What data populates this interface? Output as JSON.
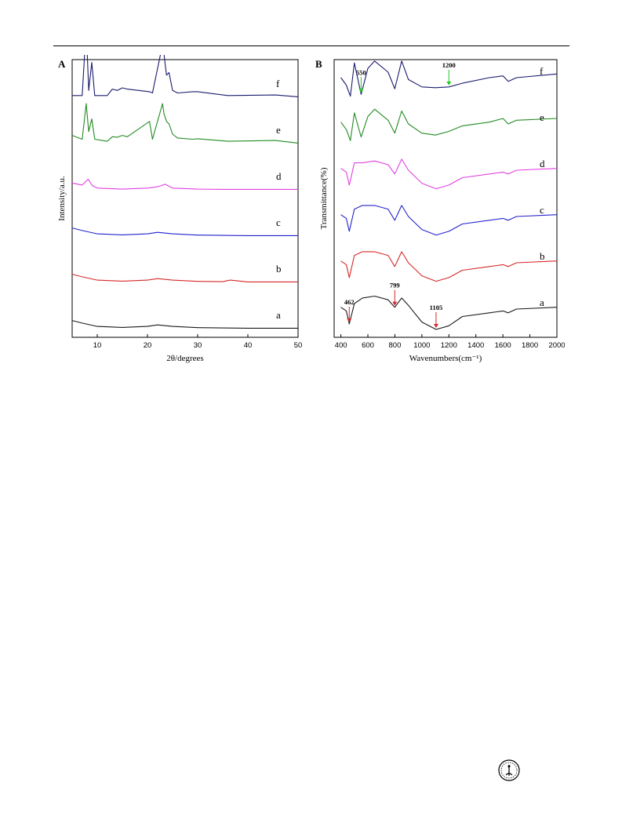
{
  "figure": {
    "panels": [
      {
        "id": "A",
        "type": "line",
        "xlabel": "2θ/degrees",
        "ylabel": "Intensity/a.u.",
        "xlim": [
          5,
          50
        ],
        "xticks": [
          10,
          20,
          30,
          40,
          50
        ],
        "series_labels": [
          "a",
          "b",
          "c",
          "d",
          "e",
          "f"
        ],
        "colors": [
          "#1a1a1a",
          "#d62828",
          "#2222cc",
          "#e040e0",
          "#228b22",
          "#1a1a6e"
        ]
      },
      {
        "id": "B",
        "type": "line",
        "xlabel": "Wavenumbers(cm⁻¹)",
        "ylabel": "Transmittance(%)",
        "xlim": [
          350,
          2000
        ],
        "xticks": [
          400,
          600,
          800,
          1000,
          1200,
          1400,
          1600,
          1800,
          2000
        ],
        "series_labels": [
          "a",
          "b",
          "c",
          "d",
          "e",
          "f"
        ],
        "colors": [
          "#1a1a1a",
          "#d62828",
          "#2222cc",
          "#e040e0",
          "#228b22",
          "#1a1a6e"
        ],
        "annotations": [
          {
            "text": "462",
            "x": 462,
            "series": "a",
            "arrow_color": "#d62828"
          },
          {
            "text": "799",
            "x": 799,
            "series": "a",
            "arrow_color": "#d62828"
          },
          {
            "text": "1105",
            "x": 1105,
            "series": "a",
            "arrow_color": "#d62828"
          },
          {
            "text": "550",
            "x": 550,
            "series": "f",
            "arrow_color": "#22cc22"
          },
          {
            "text": "1200",
            "x": 1200,
            "series": "f",
            "arrow_color": "#22cc22"
          }
        ]
      }
    ]
  },
  "chart_data": [
    {
      "type": "line",
      "title": "",
      "panel_label": "A",
      "xlabel": "2θ/degrees",
      "ylabel": "Intensity/a.u.",
      "xlim": [
        5,
        50
      ],
      "grid": false,
      "series": [
        {
          "name": "a",
          "x": [
            5,
            7,
            10,
            15,
            20,
            22,
            25,
            30,
            35,
            40,
            45,
            50
          ],
          "values": [
            0.35,
            0.25,
            0.12,
            0.08,
            0.12,
            0.18,
            0.12,
            0.07,
            0.06,
            0.05,
            0.05,
            0.05
          ]
        },
        {
          "name": "b",
          "x": [
            5,
            7,
            10,
            15,
            20,
            22,
            25,
            30,
            35,
            36.5,
            40,
            45,
            50
          ],
          "values": [
            0.35,
            0.25,
            0.12,
            0.08,
            0.12,
            0.18,
            0.12,
            0.07,
            0.06,
            0.12,
            0.05,
            0.05,
            0.05
          ]
        },
        {
          "name": "c",
          "x": [
            5,
            7,
            10,
            15,
            20,
            22,
            25,
            30,
            35,
            40,
            45,
            50
          ],
          "values": [
            0.35,
            0.25,
            0.12,
            0.08,
            0.12,
            0.18,
            0.12,
            0.07,
            0.06,
            0.05,
            0.05,
            0.05
          ]
        },
        {
          "name": "d",
          "x": [
            5,
            7,
            8.2,
            9,
            10,
            15,
            20,
            22,
            23.5,
            25,
            30,
            35,
            40,
            45,
            50
          ],
          "values": [
            0.3,
            0.22,
            0.45,
            0.2,
            0.1,
            0.06,
            0.1,
            0.15,
            0.25,
            0.1,
            0.06,
            0.05,
            0.05,
            0.05,
            0.05
          ]
        },
        {
          "name": "e",
          "x": [
            5,
            7,
            7.8,
            8.3,
            8.9,
            9.5,
            12,
            13,
            14,
            15,
            16,
            20.4,
            21,
            23,
            23.3,
            23.8,
            24.3,
            25,
            26,
            29,
            30,
            36,
            45.5,
            50
          ],
          "values": [
            0.35,
            0.2,
            1.6,
            0.5,
            1.0,
            0.2,
            0.12,
            0.3,
            0.28,
            0.35,
            0.3,
            0.9,
            0.2,
            1.6,
            1.2,
            0.9,
            0.8,
            0.4,
            0.25,
            0.2,
            0.22,
            0.12,
            0.15,
            0.05
          ]
        },
        {
          "name": "f",
          "x": [
            5,
            7,
            7.8,
            8.3,
            8.9,
            9.5,
            12,
            13,
            14,
            15,
            16,
            20.4,
            21,
            23,
            23.3,
            23.8,
            24.3,
            25,
            26,
            29,
            30,
            36,
            45.5,
            50
          ],
          "values": [
            0.1,
            0.1,
            2.8,
            0.3,
            1.4,
            0.1,
            0.1,
            0.35,
            0.3,
            0.4,
            0.35,
            0.25,
            0.2,
            2.1,
            1.7,
            0.9,
            1.0,
            0.3,
            0.2,
            0.25,
            0.25,
            0.1,
            0.12,
            0.05
          ]
        }
      ]
    },
    {
      "type": "line",
      "title": "",
      "panel_label": "B",
      "xlabel": "Wavenumbers(cm⁻¹)",
      "ylabel": "Transmittance(%)",
      "xlim": [
        350,
        2000
      ],
      "xticks": [
        400,
        600,
        800,
        1000,
        1200,
        1400,
        1600,
        1800,
        2000
      ],
      "grid": false,
      "series": [
        {
          "name": "a",
          "x": [
            400,
            440,
            462,
            500,
            560,
            650,
            750,
            799,
            850,
            900,
            1000,
            1105,
            1200,
            1300,
            1500,
            1600,
            1640,
            1700,
            2000
          ],
          "values": [
            0.6,
            0.5,
            0.15,
            0.7,
            0.85,
            0.9,
            0.8,
            0.6,
            0.85,
            0.65,
            0.2,
            0.0,
            0.1,
            0.35,
            0.45,
            0.5,
            0.45,
            0.55,
            0.6
          ]
        },
        {
          "name": "b",
          "x": [
            400,
            440,
            462,
            500,
            560,
            650,
            750,
            799,
            850,
            900,
            1000,
            1105,
            1200,
            1300,
            1500,
            1600,
            1640,
            1700,
            2000
          ],
          "values": [
            0.6,
            0.5,
            0.15,
            0.75,
            0.85,
            0.85,
            0.75,
            0.45,
            0.85,
            0.55,
            0.2,
            0.05,
            0.15,
            0.35,
            0.45,
            0.5,
            0.45,
            0.55,
            0.6
          ]
        },
        {
          "name": "c",
          "x": [
            400,
            440,
            462,
            500,
            560,
            650,
            750,
            799,
            850,
            900,
            1000,
            1105,
            1200,
            1300,
            1500,
            1600,
            1640,
            1700,
            2000
          ],
          "values": [
            0.6,
            0.5,
            0.15,
            0.75,
            0.85,
            0.85,
            0.75,
            0.45,
            0.85,
            0.55,
            0.2,
            0.05,
            0.15,
            0.35,
            0.45,
            0.5,
            0.45,
            0.55,
            0.6
          ]
        },
        {
          "name": "d",
          "x": [
            400,
            440,
            462,
            500,
            560,
            650,
            750,
            799,
            850,
            900,
            1000,
            1105,
            1200,
            1300,
            1500,
            1600,
            1640,
            1700,
            2000
          ],
          "values": [
            0.6,
            0.5,
            0.15,
            0.75,
            0.75,
            0.8,
            0.7,
            0.45,
            0.85,
            0.55,
            0.2,
            0.05,
            0.15,
            0.35,
            0.45,
            0.5,
            0.45,
            0.55,
            0.6
          ]
        },
        {
          "name": "e",
          "x": [
            400,
            440,
            470,
            500,
            550,
            600,
            650,
            750,
            799,
            850,
            900,
            1000,
            1100,
            1200,
            1300,
            1500,
            1600,
            1640,
            1700,
            2000
          ],
          "values": [
            0.6,
            0.4,
            0.1,
            0.85,
            0.2,
            0.75,
            0.95,
            0.65,
            0.3,
            0.9,
            0.55,
            0.3,
            0.25,
            0.35,
            0.5,
            0.6,
            0.7,
            0.55,
            0.65,
            0.7
          ]
        },
        {
          "name": "f",
          "x": [
            400,
            440,
            470,
            500,
            550,
            600,
            650,
            750,
            799,
            850,
            900,
            1000,
            1100,
            1200,
            1300,
            1500,
            1600,
            1640,
            1700,
            2000
          ],
          "values": [
            0.55,
            0.35,
            0.05,
            0.95,
            0.1,
            0.8,
            1.0,
            0.7,
            0.25,
            1.0,
            0.5,
            0.3,
            0.28,
            0.3,
            0.4,
            0.55,
            0.6,
            0.45,
            0.55,
            0.65
          ]
        }
      ]
    }
  ]
}
